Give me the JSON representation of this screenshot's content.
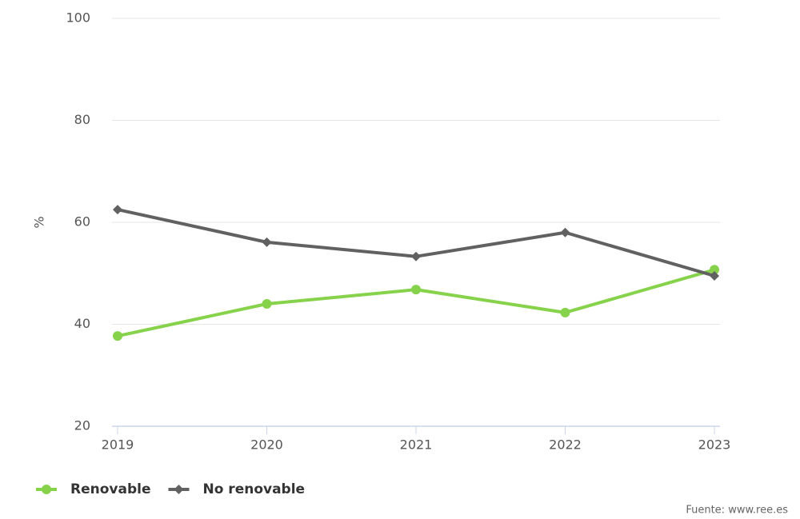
{
  "chart_data": {
    "type": "line",
    "y_label": "%",
    "categories": [
      "2019",
      "2020",
      "2021",
      "2022",
      "2023"
    ],
    "series": [
      {
        "name": "Renovable",
        "color": "#86d24a",
        "marker": "circle",
        "values": [
          37.7,
          44.0,
          46.8,
          42.3,
          50.7
        ]
      },
      {
        "name": "No renovable",
        "color": "#616161",
        "marker": "diamond",
        "values": [
          62.5,
          56.1,
          53.3,
          58.0,
          49.5
        ]
      }
    ],
    "ylim": [
      20,
      100
    ],
    "yticks": [
      20,
      40,
      60,
      80,
      100
    ],
    "grid": true,
    "source": "Fuente: www.ree.es"
  }
}
